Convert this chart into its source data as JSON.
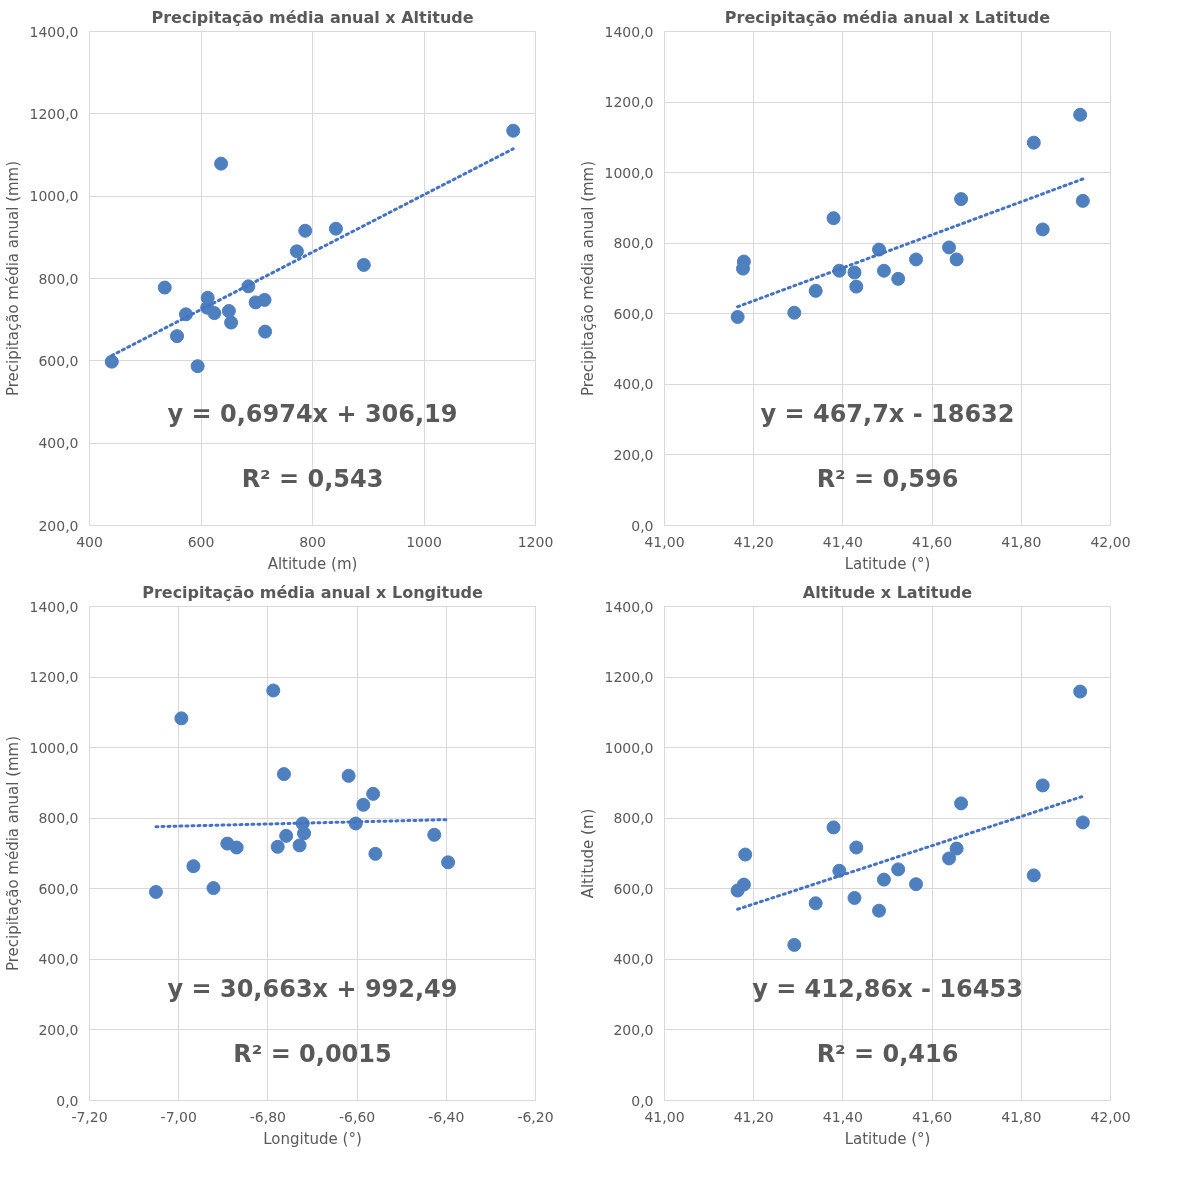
{
  "chart_data": [
    {
      "type": "scatter",
      "title": "Precipitação média anual x Altitude",
      "xlabel": "Altitude (m)",
      "ylabel": "Precipitação média anual (mm)",
      "xlim": [
        400,
        1200
      ],
      "xticks": [
        400,
        600,
        800,
        1000,
        1200
      ],
      "ylim": [
        200,
        1400
      ],
      "yticks": [
        {
          "value": 200,
          "label": "200,0"
        },
        {
          "value": 400,
          "label": "400,0"
        },
        {
          "value": 600,
          "label": "600,0"
        },
        {
          "value": 800,
          "label": "800,0"
        },
        {
          "value": 1000,
          "label": "1000,0"
        },
        {
          "value": 1200,
          "label": "1200,0"
        },
        {
          "value": 1400,
          "label": "1400,0"
        }
      ],
      "grid": true,
      "marker": "circle",
      "annotations": [
        "y = 0,6974x + 306,19",
        "R² = 0,543"
      ],
      "series": [
        {
          "color": "#4e7fbf",
          "x": [
            440,
            535,
            573,
            557,
            594,
            612,
            611,
            624,
            636,
            650,
            654,
            685,
            698,
            714,
            715,
            772,
            787,
            842,
            892,
            1160
          ],
          "values": [
            598,
            778,
            713,
            660,
            587,
            753,
            729,
            716,
            1079,
            721,
            693,
            781,
            742,
            748,
            671,
            866,
            916,
            921,
            833,
            1159
          ]
        },
        {
          "type": "line",
          "marker": "none",
          "color": "#4472c4",
          "line_style": "dotted",
          "x": [
            440,
            1160
          ],
          "values": [
            613,
            1115
          ]
        }
      ]
    },
    {
      "type": "scatter",
      "title": "Precipitação média anual x Latitude",
      "xlabel": "Latitude (°)",
      "ylabel": "Precipitação média anual (mm)",
      "xlim": [
        41.0,
        42.0
      ],
      "xticks": [
        {
          "value": 41.0,
          "label": "41,00"
        },
        {
          "value": 41.2,
          "label": "41,20"
        },
        {
          "value": 41.4,
          "label": "41,40"
        },
        {
          "value": 41.6,
          "label": "41,60"
        },
        {
          "value": 41.8,
          "label": "41,80"
        },
        {
          "value": 42.0,
          "label": "42,00"
        }
      ],
      "ylim": [
        0,
        1400
      ],
      "yticks": [
        {
          "value": 0,
          "label": "0,0"
        },
        {
          "value": 200,
          "label": "200,0"
        },
        {
          "value": 400,
          "label": "400,0"
        },
        {
          "value": 600,
          "label": "600,0"
        },
        {
          "value": 800,
          "label": "800,0"
        },
        {
          "value": 1000,
          "label": "1000,0"
        },
        {
          "value": 1200,
          "label": "1200,0"
        },
        {
          "value": 1400,
          "label": "1400,0"
        }
      ],
      "grid": true,
      "marker": "circle",
      "annotations": [
        "y = 467,7x - 18632",
        "R² = 0,596"
      ],
      "series": [
        {
          "color": "#4e7fbf",
          "x": [
            41.164,
            41.178,
            41.176,
            41.291,
            41.339,
            41.379,
            41.392,
            41.426,
            41.43,
            41.481,
            41.492,
            41.524,
            41.564,
            41.638,
            41.655,
            41.665,
            41.828,
            41.848,
            41.932,
            41.938
          ],
          "values": [
            591,
            748,
            728,
            603,
            665,
            871,
            722,
            717,
            677,
            782,
            722,
            699,
            754,
            788,
            754,
            925,
            1085,
            839,
            1164,
            920
          ]
        },
        {
          "type": "line",
          "color": "#4472c4",
          "line_style": "dotted",
          "x": [
            41.164,
            41.938
          ],
          "values": [
            620,
            982
          ],
          "marker": "none"
        }
      ]
    },
    {
      "type": "scatter",
      "title": "Precipitação média anual x Longitude",
      "xlabel": "Longitude (°)",
      "ylabel": "Precipitação média anual (mm)",
      "xlim": [
        -7.2,
        -6.2
      ],
      "xticks": [
        {
          "value": -7.2,
          "label": "-7,20"
        },
        {
          "value": -7.0,
          "label": "-7,00"
        },
        {
          "value": -6.8,
          "label": "-6,80"
        },
        {
          "value": -6.6,
          "label": "-6,60"
        },
        {
          "value": -6.4,
          "label": "-6,40"
        },
        {
          "value": -6.2,
          "label": "-6,20"
        }
      ],
      "ylim": [
        0,
        1400
      ],
      "yticks": [
        {
          "value": 0,
          "label": "0,0"
        },
        {
          "value": 200,
          "label": "200,0"
        },
        {
          "value": 400,
          "label": "400,0"
        },
        {
          "value": 600,
          "label": "600,0"
        },
        {
          "value": 800,
          "label": "800,0"
        },
        {
          "value": 1000,
          "label": "1000,0"
        },
        {
          "value": 1200,
          "label": "1200,0"
        },
        {
          "value": 1400,
          "label": "1400,0"
        }
      ],
      "grid": true,
      "marker": "circle",
      "annotations": [
        "y = 30,663x + 992,49",
        "R² = 0,0015"
      ],
      "series": [
        {
          "color": "#4e7fbf",
          "x": [
            -7.051,
            -6.994,
            -6.967,
            -6.922,
            -6.891,
            -6.87,
            -6.788,
            -6.778,
            -6.764,
            -6.759,
            -6.729,
            -6.722,
            -6.719,
            -6.619,
            -6.603,
            -6.586,
            -6.564,
            -6.559,
            -6.427,
            -6.396
          ],
          "values": [
            591,
            1083,
            664,
            602,
            728,
            717,
            1162,
            719,
            925,
            750,
            723,
            785,
            757,
            920,
            785,
            838,
            869,
            699,
            753,
            675
          ]
        },
        {
          "type": "line",
          "color": "#4472c4",
          "line_style": "dotted",
          "x": [
            -7.051,
            -6.396
          ],
          "values": [
            776,
            796
          ],
          "marker": "none"
        }
      ]
    },
    {
      "type": "scatter",
      "title": "Altitude x Latitude",
      "xlabel": "Latitude (°)",
      "ylabel": "Altitude (m)",
      "xlim": [
        41.0,
        42.0
      ],
      "xticks": [
        {
          "value": 41.0,
          "label": "41,00"
        },
        {
          "value": 41.2,
          "label": "41,20"
        },
        {
          "value": 41.4,
          "label": "41,40"
        },
        {
          "value": 41.6,
          "label": "41,60"
        },
        {
          "value": 41.8,
          "label": "41,80"
        },
        {
          "value": 42.0,
          "label": "42,00"
        }
      ],
      "ylim": [
        0,
        1400
      ],
      "yticks": [
        {
          "value": 0,
          "label": "0,0"
        },
        {
          "value": 200,
          "label": "200,0"
        },
        {
          "value": 400,
          "label": "400,0"
        },
        {
          "value": 600,
          "label": "600,0"
        },
        {
          "value": 800,
          "label": "800,0"
        },
        {
          "value": 1000,
          "label": "1000,0"
        },
        {
          "value": 1200,
          "label": "1200,0"
        },
        {
          "value": 1400,
          "label": "1400,0"
        }
      ],
      "grid": true,
      "marker": "circle",
      "annotations": [
        "y = 412,86x - 16453",
        "R² = 0,416"
      ],
      "series": [
        {
          "color": "#4e7fbf",
          "x": [
            41.164,
            41.178,
            41.181,
            41.291,
            41.339,
            41.379,
            41.392,
            41.426,
            41.43,
            41.481,
            41.492,
            41.524,
            41.564,
            41.638,
            41.655,
            41.665,
            41.828,
            41.848,
            41.932,
            41.938
          ],
          "values": [
            595,
            612,
            697,
            441,
            559,
            774,
            651,
            574,
            717,
            538,
            626,
            655,
            613,
            686,
            714,
            842,
            638,
            893,
            1159,
            788
          ]
        },
        {
          "type": "line",
          "color": "#4472c4",
          "line_style": "dotted",
          "x": [
            41.164,
            41.938
          ],
          "values": [
            542,
            862
          ],
          "marker": "none"
        }
      ]
    }
  ]
}
